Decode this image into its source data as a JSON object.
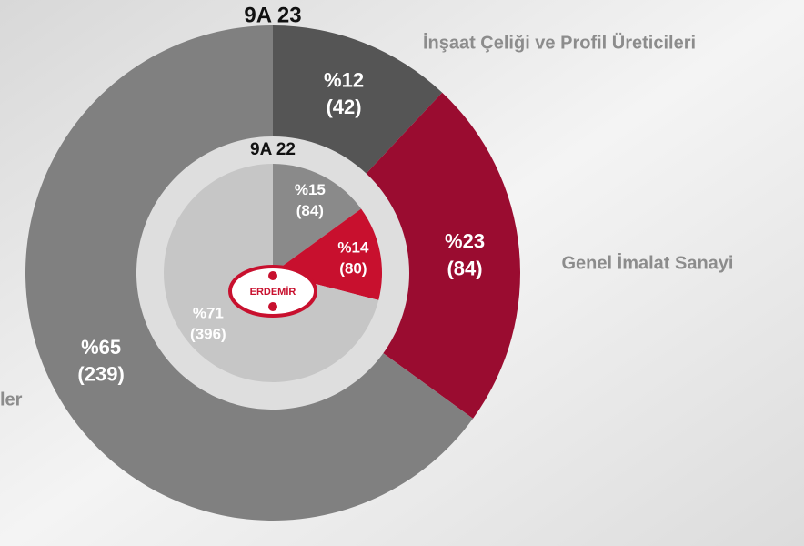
{
  "chart_data": [
    {
      "type": "donut",
      "title": "9A 23",
      "categories": [
        "İnşaat Çeliği ve Profil Üreticileri",
        "Genel İmalat Sanayi",
        "ler"
      ],
      "values": [
        12,
        23,
        65
      ],
      "value_labels": [
        "%12",
        "%23",
        "%65"
      ],
      "counts": [
        42,
        84,
        239
      ],
      "count_labels": [
        "(42)",
        "(84)",
        "(239)"
      ],
      "colors": [
        "#555555",
        "#9a0c30",
        "#808080"
      ]
    },
    {
      "type": "donut",
      "title": "9A 22",
      "values": [
        15,
        14,
        71
      ],
      "value_labels": [
        "%15",
        "%14",
        "%71"
      ],
      "counts": [
        84,
        80,
        396
      ],
      "count_labels": [
        "(84)",
        "(80)",
        "(396)"
      ],
      "colors": [
        "#8a8a8a",
        "#c8102e",
        "#c6c6c6"
      ]
    }
  ],
  "logo": "ERDEMİR"
}
